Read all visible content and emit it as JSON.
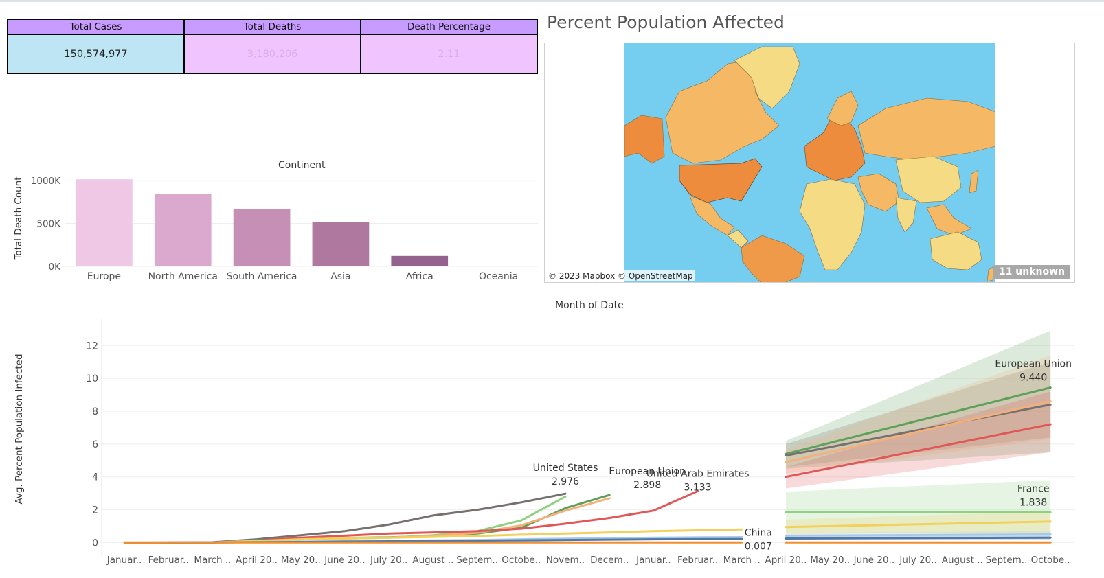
{
  "kpi": {
    "columns": [
      {
        "header": "Total Cases",
        "value": "150,574,977"
      },
      {
        "header": "Total Deaths",
        "value": "3,180,206"
      },
      {
        "header": "Death Percentage",
        "value": "2.11"
      }
    ]
  },
  "map": {
    "title": "Percent Population Affected",
    "attribution": "© 2023 Mapbox © OpenStreetMap",
    "unknown_badge": "11 unknown",
    "colors": {
      "ocean": "#75cdef",
      "low": "#f5dc84",
      "mid": "#f5b865",
      "high": "#ee8c3e"
    }
  },
  "continent_chart": {
    "title": "Continent",
    "ylabel": "Total Death Count"
  },
  "line_chart": {
    "title": "Month of Date",
    "ylabel": "Avg. Percent Population Infected"
  },
  "chart_data": [
    {
      "type": "bar",
      "title": "Continent",
      "xlabel": "",
      "ylabel": "Total Death Count",
      "categories": [
        "Europe",
        "North America",
        "South America",
        "Asia",
        "Africa",
        "Oceania"
      ],
      "values": [
        1016750,
        847942,
        672415,
        520269,
        121784,
        1046
      ],
      "ylim": [
        0,
        1050000
      ],
      "yticks": [
        0,
        500000,
        1000000
      ],
      "ytick_labels": [
        "0K",
        "500K",
        "1000K"
      ],
      "colors": [
        "#efc8e6",
        "#dba9cd",
        "#c690b6",
        "#ae789f",
        "#94628e",
        "#7d5076"
      ],
      "grid": true
    },
    {
      "type": "line",
      "title": "Month of Date",
      "xlabel": "",
      "ylabel": "Avg. Percent Population Infected",
      "ylim": [
        -0.4,
        13.6
      ],
      "yticks": [
        0,
        2,
        4,
        6,
        8,
        10,
        12
      ],
      "x_tick_labels": [
        "Januar..",
        "Februar..",
        "March ..",
        "April 20..",
        "May 20..",
        "June 20..",
        "July 20..",
        "August ..",
        "Septem..",
        "Octobe..",
        "Novem..",
        "Decem..",
        "Januar..",
        "Februar..",
        "March ..",
        "April 20..",
        "May 20..",
        "June 20..",
        "July 20..",
        "August ..",
        "Septem..",
        "Octobe.."
      ],
      "series": [
        {
          "name": "United States",
          "color": "#76706e",
          "x": [
            0,
            1,
            2,
            3,
            4,
            5,
            6,
            7,
            8,
            9,
            10
          ],
          "y": [
            0,
            0,
            0.02,
            0.2,
            0.45,
            0.7,
            1.1,
            1.65,
            2.0,
            2.45,
            2.976
          ]
        },
        {
          "name": "European Union",
          "color": "#5ea05a",
          "x": [
            1,
            2,
            3,
            4,
            5,
            6,
            7,
            8,
            9,
            10,
            11
          ],
          "y": [
            0,
            0.01,
            0.15,
            0.25,
            0.28,
            0.32,
            0.4,
            0.55,
            0.9,
            2.1,
            2.898
          ]
        },
        {
          "color": "#8fd17e",
          "x": [
            1,
            2,
            3,
            4,
            5,
            6,
            7,
            8,
            9,
            10
          ],
          "y": [
            0,
            0.01,
            0.12,
            0.2,
            0.25,
            0.3,
            0.45,
            0.7,
            1.35,
            2.8
          ]
        },
        {
          "color": "#f5b07a",
          "x": [
            1,
            2,
            3,
            4,
            5,
            6,
            7,
            8,
            9,
            10,
            11
          ],
          "y": [
            0,
            0.01,
            0.1,
            0.2,
            0.25,
            0.3,
            0.4,
            0.6,
            1.05,
            1.95,
            2.7
          ]
        },
        {
          "name": "United Arab Emirates",
          "color": "#e05757",
          "x": [
            1,
            2,
            3,
            4,
            5,
            6,
            7,
            8,
            9,
            10,
            11,
            12,
            13
          ],
          "y": [
            0,
            0.01,
            0.12,
            0.3,
            0.42,
            0.55,
            0.62,
            0.7,
            0.85,
            1.15,
            1.5,
            1.95,
            3.133
          ]
        },
        {
          "color": "#f3cf5b",
          "x": [
            1,
            2,
            3,
            4,
            5,
            6,
            7,
            8,
            9,
            10,
            11,
            12,
            13,
            14
          ],
          "y": [
            0,
            0.01,
            0.1,
            0.2,
            0.25,
            0.3,
            0.35,
            0.4,
            0.48,
            0.55,
            0.62,
            0.7,
            0.75,
            0.8
          ]
        },
        {
          "color": "#a8c8e8",
          "x": [
            1,
            2,
            3,
            4,
            5,
            6,
            7,
            8,
            9,
            10,
            11,
            12,
            13,
            14
          ],
          "y": [
            0,
            0.01,
            0.03,
            0.06,
            0.08,
            0.1,
            0.13,
            0.16,
            0.2,
            0.24,
            0.27,
            0.3,
            0.32,
            0.33
          ]
        },
        {
          "color": "#4e79a7",
          "x": [
            1,
            2,
            3,
            4,
            5,
            6,
            7,
            8,
            9,
            10,
            11,
            12,
            13,
            14
          ],
          "y": [
            0,
            0.01,
            0.02,
            0.04,
            0.06,
            0.08,
            0.1,
            0.12,
            0.14,
            0.16,
            0.18,
            0.2,
            0.21,
            0.22
          ]
        },
        {
          "name": "China",
          "color": "#f28e2b",
          "x": [
            0,
            1,
            2,
            3,
            4,
            5,
            6,
            7,
            8,
            9,
            10,
            11,
            12,
            13,
            14
          ],
          "y": [
            0,
            0.005,
            0.006,
            0.006,
            0.006,
            0.006,
            0.006,
            0.006,
            0.006,
            0.007,
            0.007,
            0.007,
            0.007,
            0.007,
            0.007
          ]
        }
      ],
      "forecast": [
        {
          "color": "#5ea05a",
          "x": [
            15,
            21
          ],
          "y": [
            5.4,
            9.44
          ],
          "band_low": [
            4.5,
            5.5
          ],
          "band_high": [
            6.2,
            12.9
          ]
        },
        {
          "color": "#76706e",
          "x": [
            15,
            21
          ],
          "y": [
            5.3,
            8.4
          ],
          "band_low": [
            4.6,
            6.4
          ],
          "band_high": [
            6.0,
            11.0
          ]
        },
        {
          "color": "#f5b07a",
          "x": [
            15,
            21
          ],
          "y": [
            4.9,
            8.6
          ],
          "band_low": [
            4.2,
            6.3
          ],
          "band_high": [
            5.7,
            11.4
          ]
        },
        {
          "color": "#e05757",
          "x": [
            15,
            21
          ],
          "y": [
            4.0,
            7.2
          ],
          "band_low": [
            3.3,
            5.5
          ],
          "band_high": [
            4.6,
            9.2
          ]
        },
        {
          "color": "#8fd17e",
          "x": [
            15,
            21
          ],
          "y": [
            1.838,
            1.838
          ],
          "band_low": [
            0.6,
            0.5
          ],
          "band_high": [
            3.1,
            3.8
          ]
        },
        {
          "color": "#f3cf5b",
          "x": [
            15,
            21
          ],
          "y": [
            0.95,
            1.28
          ],
          "band_low": [
            0.5,
            0.6
          ],
          "band_high": [
            1.4,
            1.9
          ]
        },
        {
          "color": "#a8c8e8",
          "x": [
            15,
            21
          ],
          "y": [
            0.42,
            0.5
          ],
          "band_low": [
            0.3,
            0.3
          ],
          "band_high": [
            0.6,
            0.7
          ]
        },
        {
          "color": "#4e79a7",
          "x": [
            15,
            21
          ],
          "y": [
            0.25,
            0.3
          ],
          "band_low": [
            0.15,
            0.15
          ],
          "band_high": [
            0.35,
            0.45
          ]
        },
        {
          "color": "#f28e2b",
          "x": [
            15,
            21
          ],
          "y": [
            0.01,
            0.01
          ],
          "band_low": [
            0,
            0
          ],
          "band_high": [
            0.05,
            0.05
          ]
        }
      ],
      "annotations": [
        {
          "series": "United States",
          "label": "United States",
          "value": "2.976",
          "x": 10,
          "y": 2.976
        },
        {
          "series": "European Union",
          "label": "European Union",
          "value": "2.898",
          "x": 11,
          "y": 2.898
        },
        {
          "series": "United Arab Emirates",
          "label": "United Arab Emirates",
          "value": "3.133",
          "x": 13,
          "y": 3.133
        },
        {
          "series": "China",
          "label": "China",
          "value": "0.007",
          "x": 14,
          "y": 0.007
        },
        {
          "series": "European Union",
          "label": "European Union",
          "value": "9.440",
          "x": 21,
          "y": 9.44
        },
        {
          "series": "France",
          "label": "France",
          "value": "1.838",
          "x": 21,
          "y": 1.838
        }
      ],
      "grid": true
    }
  ]
}
